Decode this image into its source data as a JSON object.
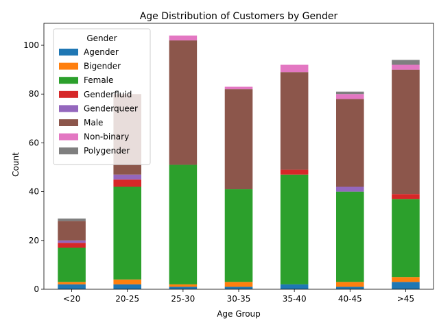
{
  "chart_data": {
    "type": "bar",
    "stacked": true,
    "title": "Age Distribution of Customers by Gender",
    "xlabel": "Age Group",
    "ylabel": "Count",
    "ylim": [
      0,
      109
    ],
    "yticks": [
      0,
      20,
      40,
      60,
      80,
      100
    ],
    "categories": [
      "<20",
      "20-25",
      "25-30",
      "30-35",
      "35-40",
      "40-45",
      ">45"
    ],
    "legend": {
      "title": "Gender",
      "placement": "top-left"
    },
    "series": [
      {
        "name": "Agender",
        "color": "#1f77b4",
        "values": [
          2,
          2,
          1,
          1,
          2,
          1,
          3
        ]
      },
      {
        "name": "Bigender",
        "color": "#ff7f0e",
        "values": [
          1,
          2,
          1,
          2,
          0,
          2,
          2
        ]
      },
      {
        "name": "Female",
        "color": "#2ca02c",
        "values": [
          14,
          38,
          49,
          38,
          45,
          37,
          32
        ]
      },
      {
        "name": "Genderfluid",
        "color": "#d62728",
        "values": [
          2,
          3,
          0,
          0,
          2,
          0,
          2
        ]
      },
      {
        "name": "Genderqueer",
        "color": "#9467bd",
        "values": [
          1,
          2,
          0,
          0,
          0,
          2,
          0
        ]
      },
      {
        "name": "Male",
        "color": "#8c564b",
        "values": [
          8,
          33,
          51,
          41,
          40,
          36,
          51
        ]
      },
      {
        "name": "Non-binary",
        "color": "#e377c2",
        "values": [
          0,
          0,
          2,
          1,
          3,
          2,
          2
        ]
      },
      {
        "name": "Polygender",
        "color": "#7f7f7f",
        "values": [
          1,
          0,
          0,
          0,
          0,
          1,
          2
        ]
      }
    ]
  }
}
